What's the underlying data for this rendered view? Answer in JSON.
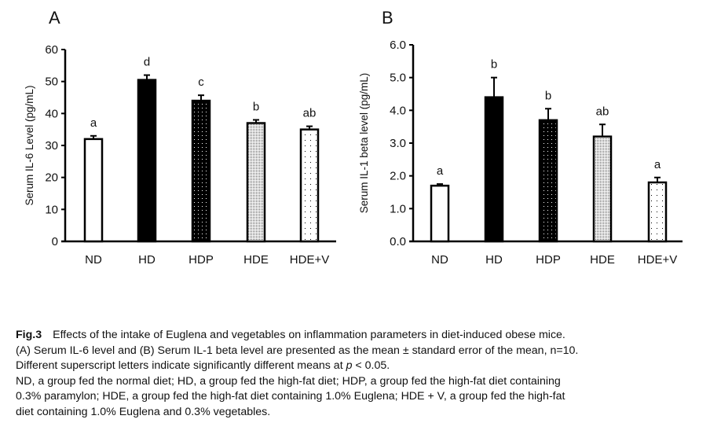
{
  "chart_data": [
    {
      "type": "bar",
      "panel": "A",
      "categories": [
        "ND",
        "HD",
        "HDP",
        "HDE",
        "HDE+V"
      ],
      "values": [
        32,
        50.5,
        44,
        37,
        35
      ],
      "errors": [
        1.0,
        1.5,
        1.7,
        1.0,
        1.0
      ],
      "letters": [
        "a",
        "d",
        "c",
        "b",
        "ab"
      ],
      "ylabel": "Serum IL-6 Level (pg/mL)",
      "ylim": [
        0,
        60
      ],
      "yticks": [
        "0",
        "10",
        "20",
        "30",
        "40",
        "50",
        "60"
      ],
      "grid": false
    },
    {
      "type": "bar",
      "panel": "B",
      "categories": [
        "ND",
        "HD",
        "HDP",
        "HDE",
        "HDE+V"
      ],
      "values": [
        1.7,
        4.4,
        3.7,
        3.2,
        1.8
      ],
      "errors": [
        0.05,
        0.6,
        0.35,
        0.37,
        0.15
      ],
      "letters": [
        "a",
        "b",
        "b",
        "ab",
        "a"
      ],
      "ylabel": "Serum IL-1 beta level (pg/mL)",
      "ylim": [
        0,
        6
      ],
      "yticks": [
        "0.0",
        "1.0",
        "2.0",
        "3.0",
        "4.0",
        "5.0",
        "6.0"
      ],
      "grid": false
    }
  ],
  "patterns": [
    "white",
    "black",
    "dots-on-black",
    "fine-dots",
    "sparse-dots"
  ],
  "caption": {
    "label": "Fig.3",
    "line1": "Effects of the intake of Euglena and vegetables on inflammation parameters in diet-induced obese mice.",
    "line2": "(A) Serum IL-6 level and (B) Serum IL-1 beta level are presented as the mean ± standard error of the mean, n=10.",
    "line3a": "Different superscript letters indicate significantly different means at ",
    "line3p": "p",
    "line3b": " < 0.05.",
    "line4": "ND, a group fed the normal diet; HD, a group fed the high-fat diet; HDP, a group fed the high-fat diet containing",
    "line5": "0.3% paramylon; HDE, a group fed the high-fat diet containing 1.0% Euglena; HDE + V, a group fed the high-fat",
    "line6": "diet containing 1.0% Euglena and 0.3% vegetables."
  }
}
